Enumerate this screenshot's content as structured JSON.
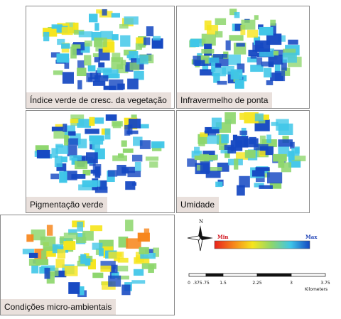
{
  "panels": [
    {
      "caption": "Índice verde de cresc. da vegetação",
      "warmth": 0.42
    },
    {
      "caption": "Infravermelho de ponta",
      "warmth": 0.35
    },
    {
      "caption": "Pigmentação verde",
      "warmth": 0.28
    },
    {
      "caption": "Umidade",
      "warmth": 0.45
    },
    {
      "caption": "Condições micro-ambientais",
      "warmth": 0.75
    }
  ],
  "legend": {
    "north_label": "N",
    "min_label": "Min",
    "max_label": "Max",
    "colors": [
      "#e8231c",
      "#f7861b",
      "#f6e51c",
      "#8dd66c",
      "#3fc6e8",
      "#1548c2"
    ],
    "min_color": "#d0101a",
    "max_color": "#1c3fb5"
  },
  "scalebar": {
    "ticks": [
      "0",
      ".375",
      ".75",
      "1.5",
      "2.25",
      "3",
      "3.75"
    ],
    "unit": "Kilometers"
  }
}
